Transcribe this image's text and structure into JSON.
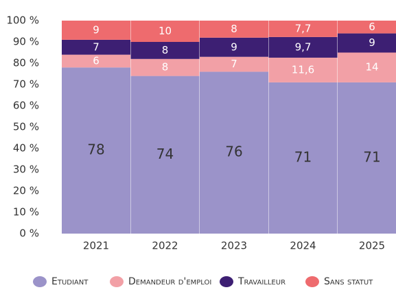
{
  "chart_data": {
    "type": "stacked_bar",
    "categories": [
      "2021",
      "2022",
      "2023",
      "2024",
      "2025"
    ],
    "series": [
      {
        "name": "Etudiant",
        "color": "#9b93c9",
        "values": [
          78,
          74,
          76,
          71,
          71
        ]
      },
      {
        "name": "Demandeur d'emploi",
        "color": "#f2a0a6",
        "values": [
          6,
          8,
          7,
          11.6,
          14
        ],
        "value_labels": [
          "6",
          "8",
          "7",
          "11,6",
          "14"
        ]
      },
      {
        "name": "Travailleur",
        "color": "#3d1f73",
        "values": [
          7,
          8,
          9,
          9.7,
          9
        ],
        "value_labels": [
          "7",
          "8",
          "9",
          "9,7",
          "9"
        ]
      },
      {
        "name": "Sans statut",
        "color": "#ee6b6e",
        "values": [
          9,
          10,
          8,
          7.7,
          6
        ],
        "value_labels": [
          "9",
          "10",
          "8",
          "7,7",
          "6"
        ]
      }
    ],
    "ylim": [
      0,
      100
    ],
    "yticks": [
      {
        "value": 0,
        "label": "0 %"
      },
      {
        "value": 10,
        "label": "10 %"
      },
      {
        "value": 20,
        "label": "20 %"
      },
      {
        "value": 30,
        "label": "30 %"
      },
      {
        "value": 40,
        "label": "40 %"
      },
      {
        "value": 50,
        "label": "50 %"
      },
      {
        "value": 60,
        "label": "60 %"
      },
      {
        "value": 70,
        "label": "70 %"
      },
      {
        "value": 80,
        "label": "80 %"
      },
      {
        "value": 90,
        "label": "90 %"
      },
      {
        "value": 100,
        "label": "100 %"
      }
    ],
    "legend": "bottom"
  }
}
